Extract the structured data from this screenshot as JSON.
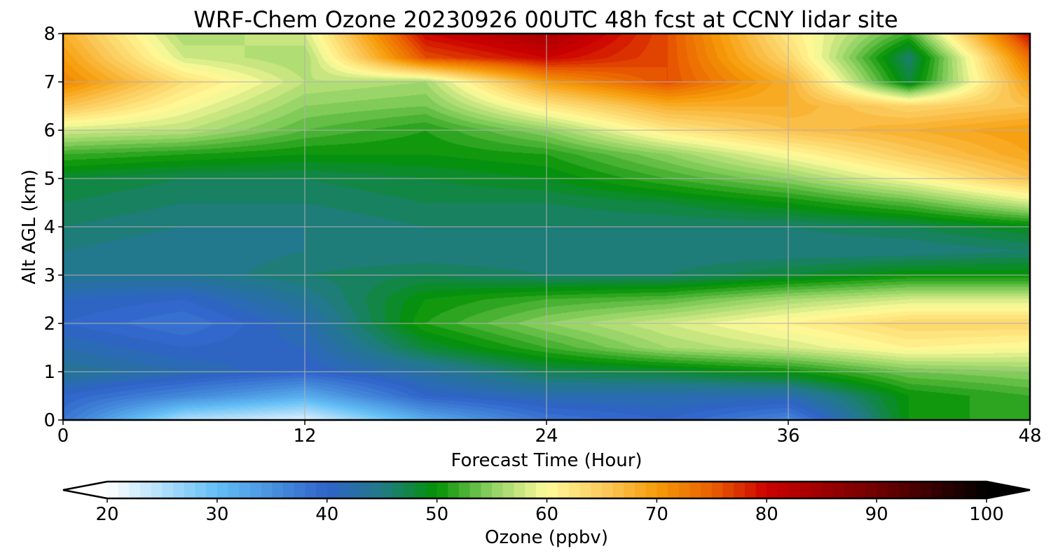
{
  "chart_data": [
    {
      "type": "heatmap",
      "title": "WRF-Chem Ozone  20230926 00UTC 48h fcst at CCNY lidar site",
      "xlabel": "Forecast Time (Hour)",
      "ylabel": "Alt AGL (km)",
      "xlim": [
        0,
        48
      ],
      "ylim": [
        0,
        8
      ],
      "x_ticks": [
        0,
        12,
        24,
        36,
        48
      ],
      "y_ticks": [
        0,
        1,
        2,
        3,
        4,
        5,
        6,
        7,
        8
      ],
      "grid": true,
      "x": [
        0,
        6,
        12,
        18,
        24,
        30,
        36,
        42,
        48
      ],
      "y": [
        0,
        0.5,
        1,
        1.5,
        2,
        2.5,
        3,
        3.5,
        4,
        4.5,
        5,
        5.5,
        6,
        6.5,
        7,
        7.5,
        8
      ],
      "z_units": "ppbv",
      "z": [
        [
          38,
          25,
          22,
          32,
          38,
          40,
          36,
          50,
          52
        ],
        [
          40,
          36,
          32,
          40,
          42,
          42,
          42,
          50,
          52
        ],
        [
          44,
          42,
          40,
          43,
          47,
          48,
          50,
          54,
          55
        ],
        [
          42,
          40,
          41,
          48,
          52,
          56,
          58,
          61,
          60
        ],
        [
          40,
          38,
          42,
          51,
          55,
          58,
          61,
          64,
          64
        ],
        [
          41,
          40,
          44,
          50,
          52,
          53,
          56,
          58,
          58
        ],
        [
          44,
          44,
          46,
          47,
          46,
          46,
          48,
          50,
          50
        ],
        [
          45,
          44,
          45,
          45,
          45,
          45,
          45,
          45,
          46
        ],
        [
          46,
          45,
          45,
          46,
          46,
          46,
          46,
          47,
          49
        ],
        [
          47,
          46,
          46,
          47,
          47,
          48,
          50,
          53,
          58
        ],
        [
          48,
          47,
          47,
          48,
          49,
          52,
          55,
          60,
          66
        ],
        [
          52,
          51,
          50,
          50,
          51,
          55,
          60,
          65,
          69
        ],
        [
          58,
          57,
          53,
          51,
          55,
          62,
          66,
          68,
          70
        ],
        [
          66,
          60,
          55,
          54,
          62,
          68,
          68,
          64,
          66
        ],
        [
          72,
          63,
          57,
          56,
          70,
          76,
          68,
          48,
          70
        ],
        [
          70,
          58,
          56,
          76,
          80,
          76,
          64,
          46,
          74
        ],
        [
          68,
          56,
          58,
          80,
          84,
          76,
          62,
          52,
          80
        ]
      ]
    },
    {
      "type": "colorbar",
      "label": "Ozone  (ppbv)",
      "range": [
        20,
        100
      ],
      "extend": "both",
      "ticks": [
        20,
        30,
        40,
        50,
        60,
        70,
        80,
        90,
        100
      ],
      "color_stops": [
        {
          "v": 20,
          "c": "#ffffff"
        },
        {
          "v": 30,
          "c": "#63bff5"
        },
        {
          "v": 40,
          "c": "#2f63c9"
        },
        {
          "v": 45,
          "c": "#217a86"
        },
        {
          "v": 50,
          "c": "#039203"
        },
        {
          "v": 55,
          "c": "#8fd163"
        },
        {
          "v": 60,
          "c": "#fffb9a"
        },
        {
          "v": 65,
          "c": "#fccc5e"
        },
        {
          "v": 70,
          "c": "#f69b09"
        },
        {
          "v": 75,
          "c": "#ea6000"
        },
        {
          "v": 80,
          "c": "#cc0000"
        },
        {
          "v": 90,
          "c": "#700000"
        },
        {
          "v": 100,
          "c": "#000000"
        }
      ]
    }
  ]
}
